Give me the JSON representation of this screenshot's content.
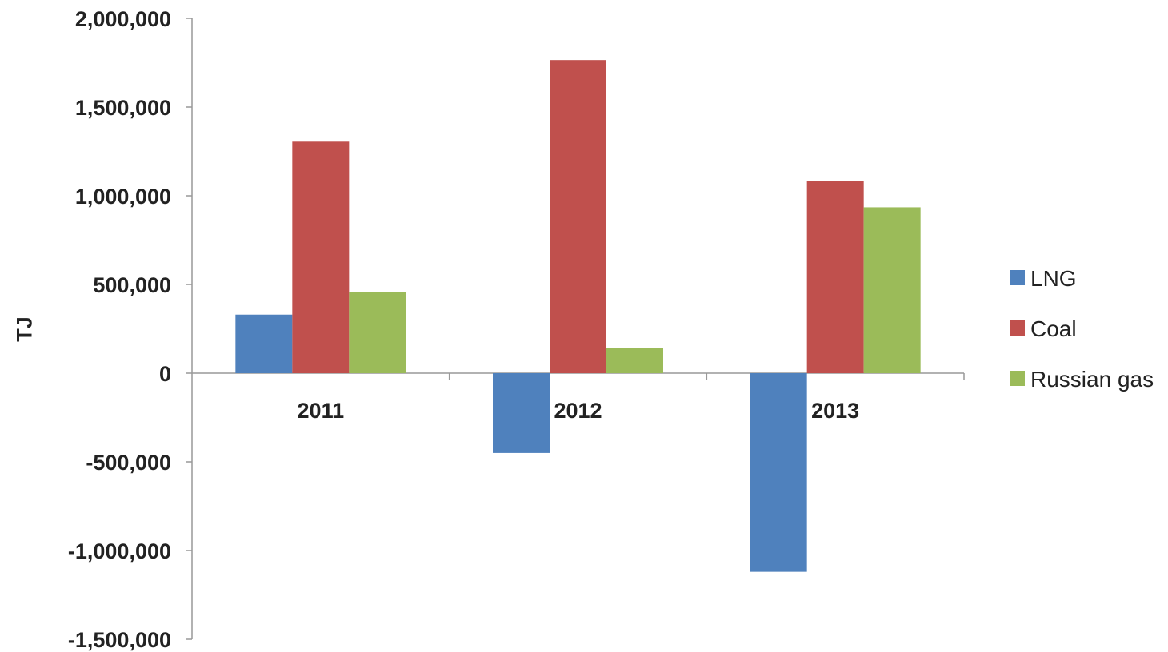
{
  "chart_data": {
    "type": "bar",
    "categories": [
      "2011",
      "2012",
      "2013"
    ],
    "series": [
      {
        "name": "LNG",
        "values": [
          330000,
          -450000,
          -1120000
        ],
        "color": "#4F81BD"
      },
      {
        "name": "Coal",
        "values": [
          1305000,
          1765000,
          1085000
        ],
        "color": "#C0504D"
      },
      {
        "name": "Russian gas",
        "values": [
          455000,
          140000,
          935000
        ],
        "color": "#9BBB59"
      }
    ],
    "ylabel": "TJ",
    "ylim": [
      -1500000,
      2000000
    ],
    "yticks": [
      2000000,
      1500000,
      1000000,
      500000,
      0,
      -500000,
      -1000000,
      -1500000
    ],
    "ytick_labels": [
      "2,000,000",
      "1,500,000",
      "1,000,000",
      "500,000",
      "0",
      "-500,000",
      "-1,000,000",
      "-1,500,000"
    ],
    "grid": false,
    "legend_position": "right"
  }
}
